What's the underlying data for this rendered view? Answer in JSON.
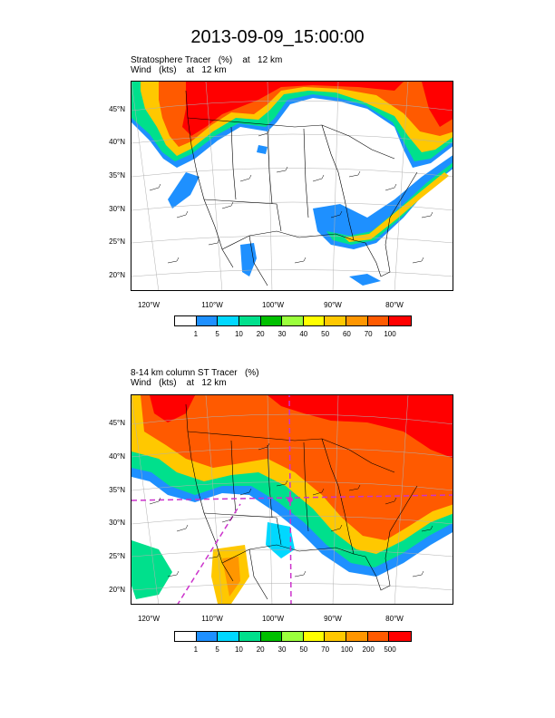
{
  "title": "2013-09-09_15:00:00",
  "panels": [
    {
      "label_line1": "Stratosphere Tracer   (%)    at   12 km",
      "label_line2": "Wind   (kts)    at   12 km",
      "lat_labels": [
        "45°N",
        "40°N",
        "35°N",
        "30°N",
        "25°N",
        "20°N"
      ],
      "lon_labels": [
        "120°W",
        "110°W",
        "100°W",
        "90°W",
        "80°W"
      ],
      "colorbar_labels": [
        "1",
        "5",
        "10",
        "20",
        "30",
        "40",
        "50",
        "60",
        "70",
        "100"
      ],
      "colorbar_colors": [
        "#ffffff",
        "#1e90ff",
        "#00d8ff",
        "#00e08c",
        "#00c000",
        "#9bff3c",
        "#ffff00",
        "#ffc800",
        "#ff9600",
        "#ff5a00",
        "#ff0000"
      ]
    },
    {
      "label_line1": "8-14 km column ST Tracer   (%)",
      "label_line2": "Wind   (kts)    at   12 km",
      "lat_labels": [
        "45°N",
        "40°N",
        "35°N",
        "30°N",
        "25°N",
        "20°N"
      ],
      "lon_labels": [
        "120°W",
        "110°W",
        "100°W",
        "90°W",
        "80°W"
      ],
      "colorbar_labels": [
        "1",
        "5",
        "10",
        "20",
        "30",
        "50",
        "70",
        "100",
        "200",
        "500"
      ],
      "colorbar_colors": [
        "#ffffff",
        "#1e90ff",
        "#00d8ff",
        "#00e08c",
        "#00c000",
        "#9bff3c",
        "#ffff00",
        "#ffc800",
        "#ff9600",
        "#ff5a00",
        "#ff0000"
      ]
    }
  ]
}
